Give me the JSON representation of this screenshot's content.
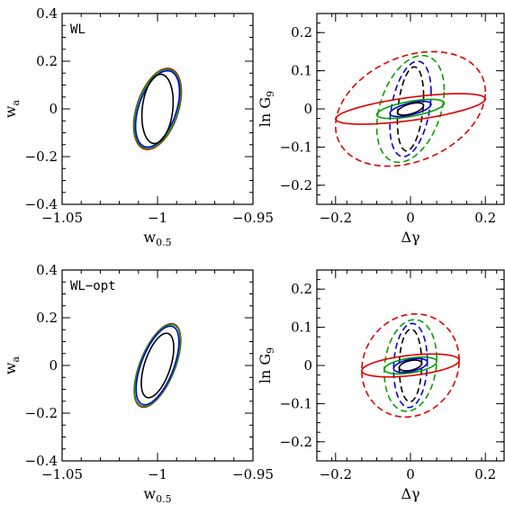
{
  "chart_data": [
    {
      "type": "line",
      "panel_label": "WL",
      "xlabel": "w_0.5",
      "ylabel": "w_a",
      "xlim": [
        -1.05,
        -0.95
      ],
      "ylim": [
        -0.4,
        0.4
      ],
      "xticks": [
        -1.05,
        -1,
        -0.95
      ],
      "xtick_labels": [
        "−1.05",
        "−1",
        "−0.95"
      ],
      "yticks": [
        -0.4,
        -0.2,
        0,
        0.2,
        0.4
      ],
      "ytick_labels": [
        "−0.4",
        "−0.2",
        "0",
        "0.2",
        "0.4"
      ],
      "grid": false,
      "series": [
        {
          "color": "#e00000",
          "dashed": false,
          "cx": -1.0,
          "cy": 0.0,
          "sx": 0.0125,
          "sy": 0.17,
          "rho": 0.42
        },
        {
          "color": "#00a000",
          "dashed": false,
          "cx": -1.0,
          "cy": 0.0,
          "sx": 0.0122,
          "sy": 0.166,
          "rho": 0.42
        },
        {
          "color": "#0000e0",
          "dashed": false,
          "cx": -1.0,
          "cy": 0.0,
          "sx": 0.0115,
          "sy": 0.16,
          "rho": 0.45
        },
        {
          "color": "#000000",
          "dashed": false,
          "cx": -1.0,
          "cy": 0.0,
          "sx": 0.0082,
          "sy": 0.145,
          "rho": 0.2
        }
      ]
    },
    {
      "type": "line",
      "xlabel": "Δγ",
      "ylabel": "ln G_9",
      "xlim": [
        -0.25,
        0.25
      ],
      "ylim": [
        -0.25,
        0.25
      ],
      "xticks": [
        -0.2,
        0,
        0.2
      ],
      "xtick_labels": [
        "−0.2",
        "0",
        "0.2"
      ],
      "yticks": [
        -0.2,
        -0.1,
        0,
        0.1,
        0.2
      ],
      "ytick_labels": [
        "−0.2",
        "−0.1",
        "0",
        "0.1",
        "0.2"
      ],
      "grid": false,
      "series": [
        {
          "color": "#e00000",
          "dashed": true,
          "cx": 0.0,
          "cy": 0.0,
          "sx": 0.2,
          "sy": 0.15,
          "rho": 0.3
        },
        {
          "color": "#00a000",
          "dashed": true,
          "cx": 0.0,
          "cy": 0.0,
          "sx": 0.09,
          "sy": 0.14,
          "rho": 0.35
        },
        {
          "color": "#0000e0",
          "dashed": true,
          "cx": 0.0,
          "cy": 0.0,
          "sx": 0.055,
          "sy": 0.125,
          "rho": 0.35
        },
        {
          "color": "#000000",
          "dashed": true,
          "cx": 0.0,
          "cy": 0.0,
          "sx": 0.035,
          "sy": 0.11,
          "rho": 0.3
        },
        {
          "color": "#e00000",
          "dashed": false,
          "cx": 0.0,
          "cy": 0.0,
          "sx": 0.2,
          "sy": 0.04,
          "rho": 0.65
        },
        {
          "color": "#00a000",
          "dashed": false,
          "cx": 0.0,
          "cy": 0.0,
          "sx": 0.09,
          "sy": 0.025,
          "rho": 0.6
        },
        {
          "color": "#0000e0",
          "dashed": false,
          "cx": 0.0,
          "cy": 0.0,
          "sx": 0.055,
          "sy": 0.02,
          "rho": 0.6
        },
        {
          "color": "#000000",
          "dashed": false,
          "cx": 0.0,
          "cy": 0.0,
          "sx": 0.035,
          "sy": 0.016,
          "rho": 0.55
        }
      ]
    },
    {
      "type": "line",
      "panel_label": "WL−opt",
      "xlabel": "w_0.5",
      "ylabel": "w_a",
      "xlim": [
        -1.05,
        -0.95
      ],
      "ylim": [
        -0.4,
        0.4
      ],
      "xticks": [
        -1.05,
        -1,
        -0.95
      ],
      "xtick_labels": [
        "−1.05",
        "−1",
        "−0.95"
      ],
      "yticks": [
        -0.4,
        -0.2,
        0,
        0.2,
        0.4
      ],
      "ytick_labels": [
        "−0.4",
        "−0.2",
        "0",
        "0.2",
        "0.4"
      ],
      "grid": false,
      "series": [
        {
          "color": "#e00000",
          "dashed": false,
          "cx": -1.0,
          "cy": 0.0,
          "sx": 0.0122,
          "sy": 0.175,
          "rho": 0.6
        },
        {
          "color": "#00a000",
          "dashed": false,
          "cx": -1.0,
          "cy": 0.0,
          "sx": 0.012,
          "sy": 0.172,
          "rho": 0.6
        },
        {
          "color": "#0000e0",
          "dashed": false,
          "cx": -1.0,
          "cy": 0.0,
          "sx": 0.0112,
          "sy": 0.165,
          "rho": 0.6
        },
        {
          "color": "#000000",
          "dashed": false,
          "cx": -1.0,
          "cy": 0.0,
          "sx": 0.0085,
          "sy": 0.135,
          "rho": 0.55
        }
      ]
    },
    {
      "type": "line",
      "xlabel": "Δγ",
      "ylabel": "ln G_9",
      "xlim": [
        -0.25,
        0.25
      ],
      "ylim": [
        -0.25,
        0.25
      ],
      "xticks": [
        -0.2,
        0,
        0.2
      ],
      "xtick_labels": [
        "−0.2",
        "0",
        "0.2"
      ],
      "yticks": [
        -0.2,
        -0.1,
        0,
        0.1,
        0.2
      ],
      "ytick_labels": [
        "−0.2",
        "−0.1",
        "0",
        "0.1",
        "0.2"
      ],
      "grid": false,
      "series": [
        {
          "color": "#e00000",
          "dashed": true,
          "cx": 0.0,
          "cy": 0.0,
          "sx": 0.13,
          "sy": 0.135,
          "rho": 0.1
        },
        {
          "color": "#00a000",
          "dashed": true,
          "cx": 0.0,
          "cy": 0.0,
          "sx": 0.07,
          "sy": 0.12,
          "rho": 0.15
        },
        {
          "color": "#0000e0",
          "dashed": true,
          "cx": 0.0,
          "cy": 0.0,
          "sx": 0.045,
          "sy": 0.11,
          "rho": 0.1
        },
        {
          "color": "#000000",
          "dashed": true,
          "cx": 0.0,
          "cy": 0.0,
          "sx": 0.03,
          "sy": 0.095,
          "rho": 0.05
        },
        {
          "color": "#e00000",
          "dashed": false,
          "cx": 0.0,
          "cy": 0.0,
          "sx": 0.13,
          "sy": 0.03,
          "rho": 0.45
        },
        {
          "color": "#00a000",
          "dashed": false,
          "cx": 0.0,
          "cy": 0.0,
          "sx": 0.07,
          "sy": 0.022,
          "rho": 0.45
        },
        {
          "color": "#0000e0",
          "dashed": false,
          "cx": 0.0,
          "cy": 0.0,
          "sx": 0.045,
          "sy": 0.018,
          "rho": 0.45
        },
        {
          "color": "#000000",
          "dashed": false,
          "cx": 0.0,
          "cy": 0.0,
          "sx": 0.03,
          "sy": 0.014,
          "rho": 0.4
        }
      ]
    }
  ]
}
